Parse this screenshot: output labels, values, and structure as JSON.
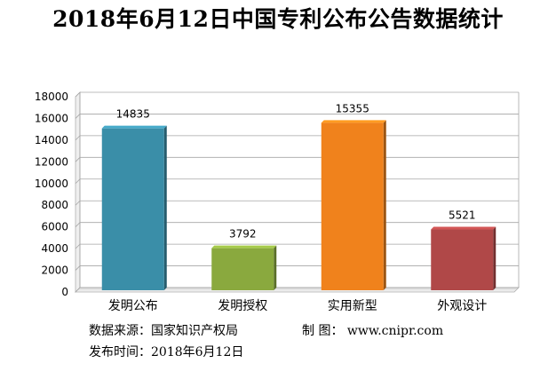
{
  "chart_data": {
    "type": "bar",
    "title": "2018年6月12日中国专利公布公告数据统计",
    "categories": [
      "发明公布",
      "发明授权",
      "实用新型",
      "外观设计"
    ],
    "values": [
      14835,
      3792,
      15355,
      5521
    ],
    "ylim": [
      0,
      18000
    ],
    "yticks": [
      "0",
      "2000",
      "4000",
      "6000",
      "8000",
      "10000",
      "12000",
      "14000",
      "16000",
      "18000"
    ],
    "grid": true,
    "legend": "none",
    "bar_colors": [
      "#3a8ea8",
      "#8aa93e",
      "#f0821c",
      "#b04848"
    ]
  },
  "footer": {
    "source_label": "数据来源：",
    "source_value": "国家知识产权局",
    "maker_label": "制  图：",
    "maker_value": "www.cnipr.com",
    "date_label": "发布时间：",
    "date_value": "2018年6月12日"
  }
}
